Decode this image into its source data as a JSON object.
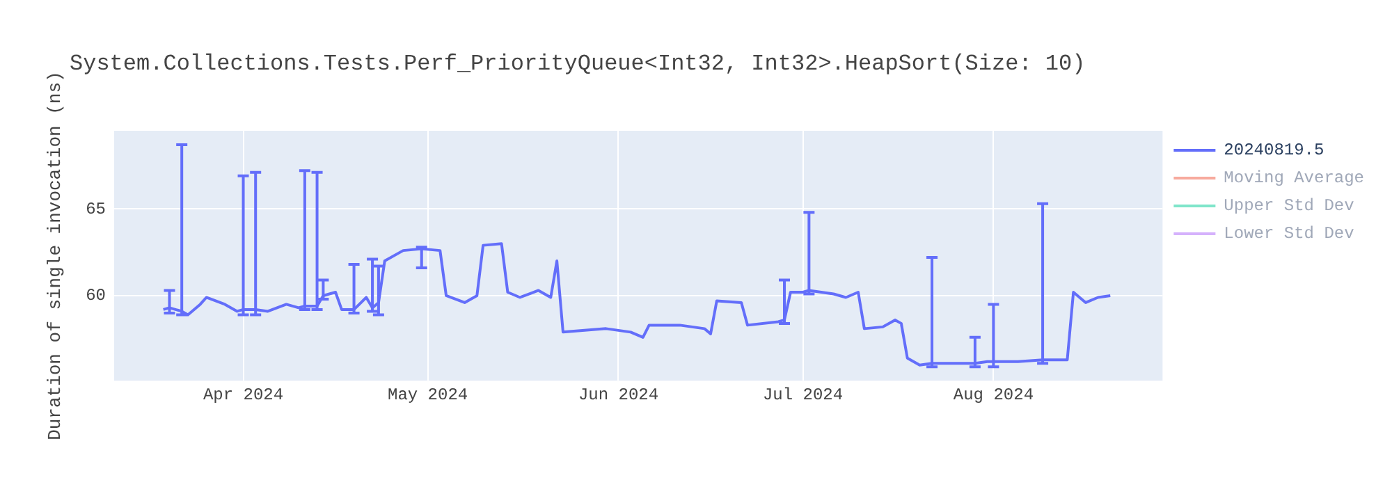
{
  "chart_data": {
    "type": "line",
    "title": "System.Collections.Tests.Perf_PriorityQueue<Int32, Int32>.HeapSort(Size: 10)",
    "ylabel": "Duration of single invocation (ns)",
    "x": [
      "2024-03-19",
      "2024-03-20",
      "2024-03-22",
      "2024-03-23",
      "2024-03-25",
      "2024-03-26",
      "2024-03-29",
      "2024-03-31",
      "2024-04-01",
      "2024-04-03",
      "2024-04-05",
      "2024-04-08",
      "2024-04-10",
      "2024-04-11",
      "2024-04-13",
      "2024-04-14",
      "2024-04-16",
      "2024-04-17",
      "2024-04-19",
      "2024-04-21",
      "2024-04-22",
      "2024-04-23",
      "2024-04-24",
      "2024-04-27",
      "2024-04-30",
      "2024-05-03",
      "2024-05-04",
      "2024-05-07",
      "2024-05-09",
      "2024-05-10",
      "2024-05-13",
      "2024-05-14",
      "2024-05-16",
      "2024-05-19",
      "2024-05-21",
      "2024-05-22",
      "2024-05-23",
      "2024-05-30",
      "2024-06-03",
      "2024-06-05",
      "2024-06-06",
      "2024-06-11",
      "2024-06-15",
      "2024-06-16",
      "2024-06-17",
      "2024-06-21",
      "2024-06-22",
      "2024-06-27",
      "2024-06-28",
      "2024-06-29",
      "2024-07-01",
      "2024-07-02",
      "2024-07-06",
      "2024-07-08",
      "2024-07-10",
      "2024-07-11",
      "2024-07-14",
      "2024-07-16",
      "2024-07-17",
      "2024-07-18",
      "2024-07-20",
      "2024-07-22",
      "2024-07-24",
      "2024-07-29",
      "2024-07-31",
      "2024-08-01",
      "2024-08-05",
      "2024-08-09",
      "2024-08-13",
      "2024-08-14",
      "2024-08-16",
      "2024-08-18",
      "2024-08-20"
    ],
    "series": [
      {
        "name": "20240819.5",
        "color": "#636efa",
        "values": [
          59.2,
          59.3,
          59.1,
          58.9,
          59.5,
          59.9,
          59.5,
          59.1,
          59.2,
          59.2,
          59.1,
          59.5,
          59.3,
          59.4,
          59.4,
          60.0,
          60.2,
          59.2,
          59.2,
          59.9,
          59.3,
          59.6,
          62.0,
          62.6,
          62.7,
          62.6,
          60.0,
          59.6,
          60.0,
          62.9,
          63.0,
          60.2,
          59.9,
          60.3,
          59.9,
          62.0,
          57.9,
          58.1,
          57.9,
          57.6,
          58.3,
          58.3,
          58.1,
          57.8,
          59.7,
          59.6,
          58.3,
          58.5,
          58.6,
          60.2,
          60.2,
          60.3,
          60.1,
          59.9,
          60.2,
          58.1,
          58.2,
          58.6,
          58.4,
          56.4,
          56.0,
          56.1,
          56.1,
          56.1,
          56.2,
          56.2,
          56.2,
          56.3,
          56.3,
          60.2,
          59.6,
          59.9,
          60.0
        ],
        "errors": [
          null,
          [
            59.0,
            60.3
          ],
          [
            58.9,
            68.7
          ],
          null,
          null,
          null,
          null,
          null,
          [
            58.9,
            66.9
          ],
          [
            58.9,
            67.1
          ],
          null,
          null,
          null,
          [
            59.2,
            67.2
          ],
          [
            59.2,
            67.1
          ],
          [
            59.8,
            60.9
          ],
          null,
          null,
          [
            59.0,
            61.8
          ],
          null,
          [
            59.1,
            62.1
          ],
          [
            58.9,
            61.7
          ],
          null,
          null,
          [
            61.6,
            62.8
          ],
          null,
          null,
          null,
          null,
          null,
          null,
          null,
          null,
          null,
          null,
          null,
          null,
          null,
          null,
          null,
          null,
          null,
          null,
          null,
          null,
          null,
          null,
          null,
          [
            58.4,
            60.9
          ],
          null,
          null,
          [
            60.1,
            64.8
          ],
          null,
          null,
          null,
          null,
          null,
          null,
          null,
          null,
          null,
          [
            55.9,
            62.2
          ],
          null,
          [
            55.9,
            57.6
          ],
          null,
          [
            55.9,
            59.5
          ],
          null,
          [
            56.1,
            65.3
          ],
          null,
          null,
          null,
          null,
          null
        ]
      },
      {
        "name": "Moving Average",
        "color": "#ef553b",
        "values": [
          null,
          null,
          null,
          null,
          null,
          null,
          null,
          null,
          null,
          null,
          null,
          null,
          null,
          null,
          null,
          null,
          null,
          null,
          null,
          null,
          null,
          null,
          null,
          null,
          null,
          null,
          null,
          null,
          null,
          null,
          null,
          null,
          null,
          null,
          null,
          null,
          null,
          null,
          null,
          null,
          null,
          null,
          null,
          null,
          null,
          null,
          null,
          null,
          null,
          null,
          null,
          null,
          null,
          null,
          null,
          null,
          null,
          null,
          null,
          null,
          null,
          null,
          null,
          null,
          null,
          null,
          null,
          null,
          null,
          null,
          null,
          null,
          null
        ]
      },
      {
        "name": "Upper Std Dev",
        "color": "#00cc96",
        "values": [
          null,
          null,
          null,
          null,
          null,
          null,
          null,
          null,
          null,
          null,
          null,
          null,
          null,
          null,
          null,
          null,
          null,
          null,
          null,
          null,
          null,
          null,
          null,
          null,
          null,
          null,
          null,
          null,
          null,
          null,
          null,
          null,
          null,
          null,
          null,
          null,
          null,
          null,
          null,
          null,
          null,
          null,
          null,
          null,
          null,
          null,
          null,
          null,
          null,
          null,
          null,
          null,
          null,
          null,
          null,
          null,
          null,
          null,
          null,
          null,
          null,
          null,
          null,
          null,
          null,
          null,
          null,
          null,
          null,
          null,
          null,
          null,
          null
        ]
      },
      {
        "name": "Lower Std Dev",
        "color": "#ab63fa",
        "values": [
          null,
          null,
          null,
          null,
          null,
          null,
          null,
          null,
          null,
          null,
          null,
          null,
          null,
          null,
          null,
          null,
          null,
          null,
          null,
          null,
          null,
          null,
          null,
          null,
          null,
          null,
          null,
          null,
          null,
          null,
          null,
          null,
          null,
          null,
          null,
          null,
          null,
          null,
          null,
          null,
          null,
          null,
          null,
          null,
          null,
          null,
          null,
          null,
          null,
          null,
          null,
          null,
          null,
          null,
          null,
          null,
          null,
          null,
          null,
          null,
          null,
          null,
          null,
          null,
          null,
          null,
          null,
          null,
          null,
          null,
          null,
          null,
          null
        ]
      }
    ],
    "xlim": [
      "2024-03-11",
      "2024-08-28T12:00"
    ],
    "xticks": [
      {
        "value": "2024-04-01",
        "label": "Apr 2024"
      },
      {
        "value": "2024-05-01",
        "label": "May 2024"
      },
      {
        "value": "2024-06-01",
        "label": "Jun 2024"
      },
      {
        "value": "2024-07-01",
        "label": "Jul 2024"
      },
      {
        "value": "2024-08-01",
        "label": "Aug 2024"
      }
    ],
    "ylim": [
      55.1,
      69.5
    ],
    "yticks": [
      60,
      65
    ],
    "grid": true,
    "legend": "top right",
    "line_style": "solid",
    "marker": "none"
  }
}
